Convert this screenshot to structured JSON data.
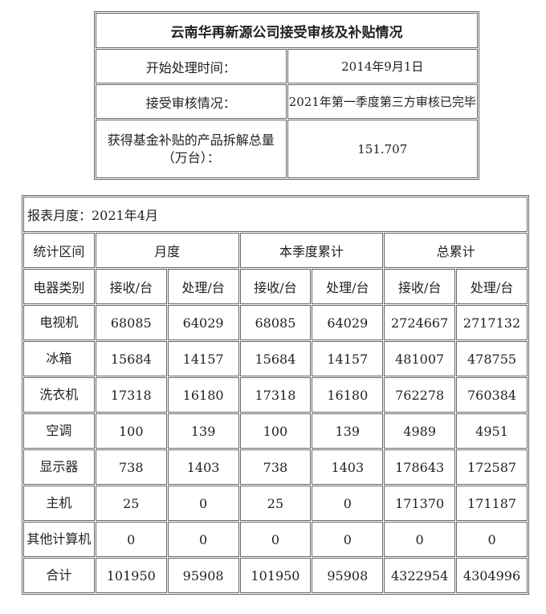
{
  "summary": {
    "title": "云南华再新源公司接受审核及补贴情况",
    "rows": [
      {
        "label": "开始处理时间：",
        "value": "2014年9月1日"
      },
      {
        "label": "接受审核情况：",
        "value": "2021年第一季度第三方审核已完毕"
      },
      {
        "label": "获得基金补贴的产品拆解总量（万台）：",
        "value": "151.707"
      }
    ]
  },
  "report": {
    "month_label": "报表月度：2021年4月",
    "period_header": "统计区间",
    "groups": [
      "月度",
      "本季度累计",
      "总累计"
    ],
    "category_header": "电器类别",
    "sub_headers": [
      "接收/台",
      "处理/台",
      "接收/台",
      "处理/台",
      "接收/台",
      "处理/台"
    ],
    "rows": [
      {
        "name": "电视机",
        "values": [
          "68085",
          "64029",
          "68085",
          "64029",
          "2724667",
          "2717132"
        ]
      },
      {
        "name": "冰箱",
        "values": [
          "15684",
          "14157",
          "15684",
          "14157",
          "481007",
          "478755"
        ]
      },
      {
        "name": "洗衣机",
        "values": [
          "17318",
          "16180",
          "17318",
          "16180",
          "762278",
          "760384"
        ]
      },
      {
        "name": "空调",
        "values": [
          "100",
          "139",
          "100",
          "139",
          "4989",
          "4951"
        ]
      },
      {
        "name": "显示器",
        "values": [
          "738",
          "1403",
          "738",
          "1403",
          "178643",
          "172587"
        ]
      },
      {
        "name": "主机",
        "values": [
          "25",
          "0",
          "25",
          "0",
          "171370",
          "171187"
        ]
      },
      {
        "name": "其他计算机",
        "values": [
          "0",
          "0",
          "0",
          "0",
          "0",
          "0"
        ]
      },
      {
        "name": "合计",
        "values": [
          "101950",
          "95908",
          "101950",
          "95908",
          "4322954",
          "4304996"
        ]
      }
    ]
  }
}
